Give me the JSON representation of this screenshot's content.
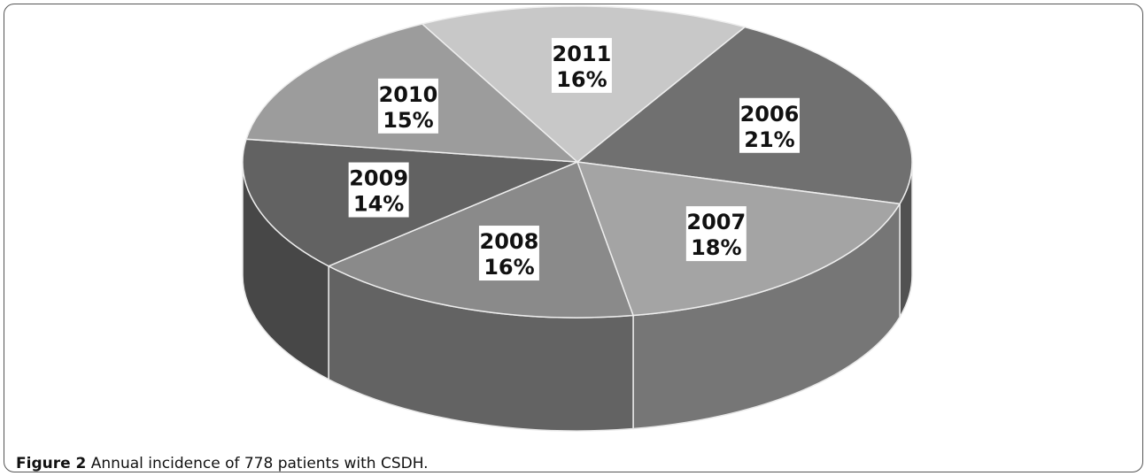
{
  "chart_data": {
    "type": "pie",
    "style": "3d",
    "slices": [
      {
        "label": "2006",
        "percent_label": "21%",
        "value": 21,
        "color": "#707070"
      },
      {
        "label": "2007",
        "percent_label": "18%",
        "value": 18,
        "color": "#a4a4a4"
      },
      {
        "label": "2008",
        "percent_label": "16%",
        "value": 16,
        "color": "#8a8a8a"
      },
      {
        "label": "2009",
        "percent_label": "14%",
        "value": 14,
        "color": "#626262"
      },
      {
        "label": "2010",
        "percent_label": "15%",
        "value": 15,
        "color": "#9c9c9c"
      },
      {
        "label": "2011",
        "percent_label": "16%",
        "value": 16,
        "color": "#c8c8c8"
      }
    ],
    "legend": "none",
    "data_labels": "inside"
  },
  "caption": {
    "figure_label": "Figure 2",
    "text": " Annual incidence of 778 patients with CSDH."
  }
}
